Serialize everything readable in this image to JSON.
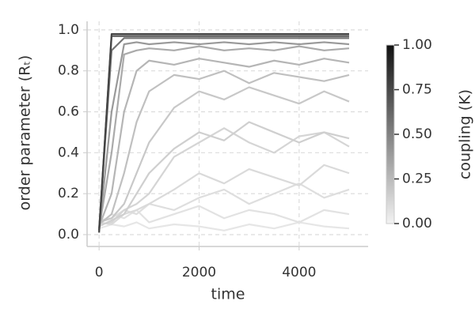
{
  "chart_data": {
    "type": "line",
    "x_label": "time",
    "y_label": "order parameter (Rₜ)",
    "x": [
      0,
      250,
      500,
      750,
      1000,
      1500,
      2000,
      2500,
      3000,
      3500,
      4000,
      4500,
      5000
    ],
    "series": [
      {
        "color": "#e6e6e6",
        "values": [
          0.03,
          0.05,
          0.04,
          0.06,
          0.03,
          0.05,
          0.04,
          0.02,
          0.05,
          0.03,
          0.06,
          0.04,
          0.03
        ]
      },
      {
        "color": "#e2e2e2",
        "values": [
          0.05,
          0.1,
          0.08,
          0.12,
          0.06,
          0.1,
          0.14,
          0.08,
          0.12,
          0.1,
          0.06,
          0.12,
          0.1
        ]
      },
      {
        "color": "#dedede",
        "values": [
          0.07,
          0.08,
          0.12,
          0.1,
          0.15,
          0.12,
          0.18,
          0.22,
          0.15,
          0.2,
          0.25,
          0.18,
          0.22
        ]
      },
      {
        "color": "#dadada",
        "values": [
          0.06,
          0.05,
          0.1,
          0.12,
          0.15,
          0.22,
          0.3,
          0.25,
          0.32,
          0.28,
          0.24,
          0.34,
          0.3
        ]
      },
      {
        "color": "#d5d5d5",
        "values": [
          0.05,
          0.06,
          0.12,
          0.15,
          0.2,
          0.38,
          0.45,
          0.52,
          0.45,
          0.4,
          0.48,
          0.5,
          0.43
        ]
      },
      {
        "color": "#cfcfcf",
        "values": [
          0.04,
          0.07,
          0.1,
          0.2,
          0.3,
          0.42,
          0.5,
          0.46,
          0.55,
          0.5,
          0.45,
          0.5,
          0.47
        ]
      },
      {
        "color": "#c8c8c8",
        "values": [
          0.06,
          0.08,
          0.15,
          0.3,
          0.45,
          0.62,
          0.7,
          0.66,
          0.72,
          0.68,
          0.64,
          0.7,
          0.65
        ]
      },
      {
        "color": "#c0c0c0",
        "values": [
          0.05,
          0.1,
          0.3,
          0.55,
          0.7,
          0.78,
          0.76,
          0.8,
          0.74,
          0.79,
          0.77,
          0.75,
          0.78
        ]
      },
      {
        "color": "#b5b5b5",
        "values": [
          0.04,
          0.2,
          0.6,
          0.8,
          0.85,
          0.83,
          0.86,
          0.84,
          0.82,
          0.85,
          0.83,
          0.86,
          0.84
        ]
      },
      {
        "color": "#aaaaaa",
        "values": [
          0.03,
          0.4,
          0.88,
          0.9,
          0.91,
          0.9,
          0.92,
          0.9,
          0.91,
          0.9,
          0.92,
          0.9,
          0.91
        ]
      },
      {
        "color": "#999999",
        "values": [
          0.02,
          0.6,
          0.93,
          0.94,
          0.93,
          0.94,
          0.93,
          0.94,
          0.93,
          0.94,
          0.93,
          0.94,
          0.93
        ]
      },
      {
        "color": "#777777",
        "values": [
          0.03,
          0.9,
          0.96,
          0.96,
          0.96,
          0.96,
          0.96,
          0.96,
          0.96,
          0.96,
          0.96,
          0.96,
          0.96
        ]
      },
      {
        "color": "#555555",
        "values": [
          0.02,
          0.97,
          0.97,
          0.97,
          0.97,
          0.97,
          0.97,
          0.97,
          0.97,
          0.97,
          0.97,
          0.97,
          0.97
        ]
      },
      {
        "color": "#444444",
        "values": [
          0.01,
          0.98,
          0.98,
          0.98,
          0.98,
          0.98,
          0.98,
          0.98,
          0.98,
          0.98,
          0.98,
          0.98,
          0.98
        ]
      }
    ],
    "xlim": [
      -240,
      5380
    ],
    "xticks": [
      0,
      2000,
      4000
    ],
    "ylim": [
      -0.058,
      1.042
    ],
    "yticks": [
      {
        "value": 0,
        "label": "0.0"
      },
      0.2,
      0.4,
      0.6,
      0.8,
      {
        "value": 1,
        "label": "1.0"
      }
    ],
    "grid": true,
    "colorbar": {
      "label": "coupling (K)",
      "lim": [
        0,
        1
      ],
      "colors": [
        "#f2f2f2",
        "#111111"
      ],
      "ticks": [
        {
          "value": 0,
          "label": "0.00"
        },
        {
          "value": 0.25,
          "label": "0.25"
        },
        {
          "value": 0.5,
          "label": "0.50"
        },
        {
          "value": 0.75,
          "label": "0.75"
        },
        {
          "value": 1,
          "label": "1.00"
        }
      ]
    }
  }
}
